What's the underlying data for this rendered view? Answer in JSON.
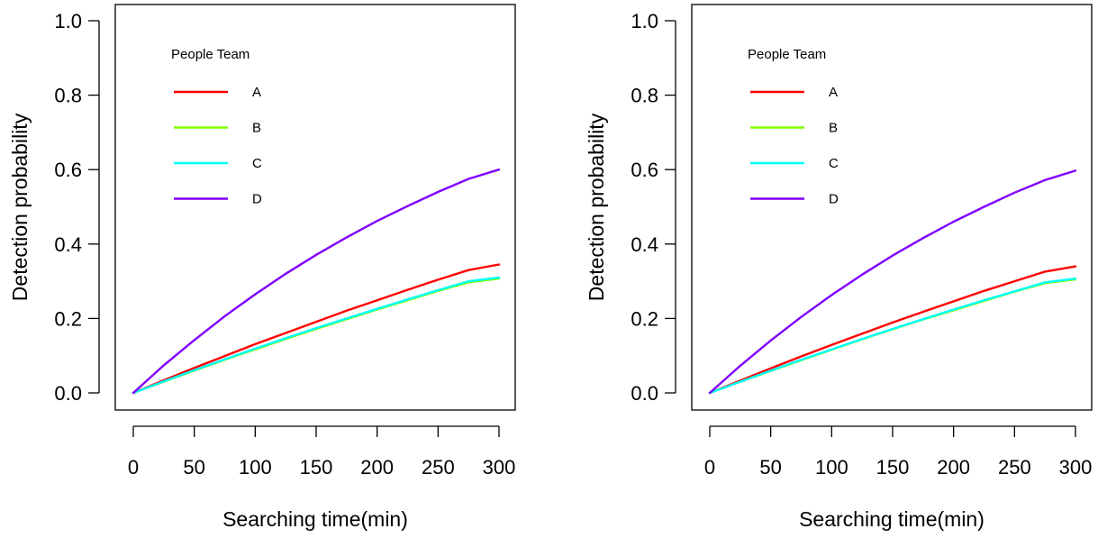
{
  "chart_data": [
    {
      "type": "line",
      "title": "",
      "xlabel": "Searching time(min)",
      "ylabel": "Detection probability",
      "xlim": [
        0,
        300
      ],
      "ylim": [
        0,
        1.0
      ],
      "xticks": [
        "0",
        "50",
        "100",
        "150",
        "200",
        "250",
        "300"
      ],
      "yticks": [
        "0.0",
        "0.2",
        "0.4",
        "0.6",
        "0.8",
        "1.0"
      ],
      "grid": false,
      "legend": {
        "title": "People Team",
        "placement": "top-left"
      },
      "x": [
        0,
        25,
        50,
        75,
        100,
        125,
        150,
        175,
        200,
        225,
        250,
        275,
        300
      ],
      "series": [
        {
          "name": "A",
          "color": "#ff0000",
          "values": [
            0,
            0.034,
            0.067,
            0.099,
            0.131,
            0.161,
            0.191,
            0.221,
            0.249,
            0.277,
            0.304,
            0.33,
            0.345
          ]
        },
        {
          "name": "B",
          "color": "#80ff00",
          "values": [
            0,
            0.03,
            0.06,
            0.089,
            0.117,
            0.145,
            0.172,
            0.198,
            0.224,
            0.249,
            0.274,
            0.297,
            0.307
          ]
        },
        {
          "name": "C",
          "color": "#00ffff",
          "values": [
            0,
            0.031,
            0.061,
            0.09,
            0.119,
            0.147,
            0.174,
            0.2,
            0.226,
            0.251,
            0.276,
            0.3,
            0.31
          ]
        },
        {
          "name": "D",
          "color": "#8000ff",
          "values": [
            0,
            0.074,
            0.142,
            0.206,
            0.265,
            0.32,
            0.371,
            0.418,
            0.462,
            0.502,
            0.54,
            0.575,
            0.6
          ]
        }
      ]
    },
    {
      "type": "line",
      "title": "",
      "xlabel": "Searching time(min)",
      "ylabel": "Detection probability",
      "xlim": [
        0,
        300
      ],
      "ylim": [
        0,
        1.0
      ],
      "xticks": [
        "0",
        "50",
        "100",
        "150",
        "200",
        "250",
        "300"
      ],
      "yticks": [
        "0.0",
        "0.2",
        "0.4",
        "0.6",
        "0.8",
        "1.0"
      ],
      "grid": false,
      "legend": {
        "title": "People Team",
        "placement": "top-left"
      },
      "x": [
        0,
        25,
        50,
        75,
        100,
        125,
        150,
        175,
        200,
        225,
        250,
        275,
        300
      ],
      "series": [
        {
          "name": "A",
          "color": "#ff0000",
          "values": [
            0,
            0.033,
            0.066,
            0.098,
            0.129,
            0.159,
            0.189,
            0.218,
            0.246,
            0.274,
            0.3,
            0.326,
            0.34
          ]
        },
        {
          "name": "B",
          "color": "#80ff00",
          "values": [
            0,
            0.03,
            0.059,
            0.088,
            0.116,
            0.144,
            0.171,
            0.197,
            0.222,
            0.247,
            0.272,
            0.295,
            0.305
          ]
        },
        {
          "name": "C",
          "color": "#00ffff",
          "values": [
            0,
            0.03,
            0.06,
            0.089,
            0.117,
            0.145,
            0.172,
            0.198,
            0.224,
            0.249,
            0.273,
            0.297,
            0.307
          ]
        },
        {
          "name": "D",
          "color": "#8000ff",
          "values": [
            0,
            0.073,
            0.141,
            0.204,
            0.263,
            0.318,
            0.369,
            0.416,
            0.46,
            0.5,
            0.538,
            0.572,
            0.597
          ]
        }
      ]
    }
  ]
}
